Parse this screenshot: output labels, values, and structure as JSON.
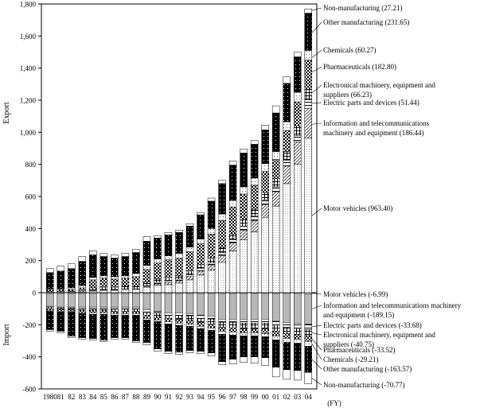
{
  "chart_data": {
    "type": "bar",
    "stacked": true,
    "ylabel_top": "Export",
    "ylabel_bottom": "Import",
    "xlabel": "(FY)",
    "ylim": [
      -600,
      1800
    ],
    "yticks": [
      -600,
      -400,
      -200,
      0,
      200,
      400,
      600,
      800,
      1000,
      1200,
      1400,
      1600,
      1800
    ],
    "ytick_labels": [
      "-600",
      "-400",
      "-200",
      "0",
      "200",
      "400",
      "600",
      "800",
      "1,000",
      "1,200",
      "1,400",
      "1,600",
      "1,800"
    ],
    "categories": [
      "1980",
      "81",
      "82",
      "83",
      "84",
      "85",
      "86",
      "87",
      "88",
      "89",
      "90",
      "91",
      "92",
      "93",
      "94",
      "95",
      "96",
      "97",
      "98",
      "99",
      "00",
      "01",
      "02",
      "03",
      "04"
    ],
    "export_series": [
      {
        "name": "Motor vehicles",
        "pattern": "motor",
        "values": [
          0,
          0,
          0,
          0,
          10,
          15,
          15,
          20,
          20,
          35,
          45,
          50,
          60,
          80,
          110,
          140,
          190,
          260,
          330,
          380,
          470,
          540,
          680,
          800,
          963.4
        ]
      },
      {
        "name": "Information and telecommunications machinery and equipment",
        "pattern": "info",
        "values": [
          0,
          0,
          0,
          0,
          0,
          0,
          0,
          0,
          0,
          5,
          10,
          15,
          15,
          20,
          25,
          30,
          40,
          50,
          60,
          70,
          80,
          90,
          110,
          140,
          186.44
        ]
      },
      {
        "name": "Electric parts and devices",
        "pattern": "parts",
        "values": [
          5,
          5,
          5,
          5,
          5,
          5,
          5,
          5,
          5,
          5,
          10,
          10,
          10,
          10,
          15,
          15,
          20,
          20,
          25,
          30,
          30,
          30,
          35,
          40,
          51.44
        ]
      },
      {
        "name": "Electronical machinery, equipment and suppliers",
        "pattern": "elec",
        "values": [
          5,
          5,
          5,
          10,
          15,
          15,
          15,
          15,
          15,
          20,
          20,
          20,
          20,
          25,
          25,
          30,
          30,
          35,
          40,
          40,
          45,
          50,
          55,
          60,
          66.23
        ]
      },
      {
        "name": "Pharmaceuticals",
        "pattern": "pharma",
        "values": [
          10,
          10,
          10,
          15,
          50,
          55,
          50,
          50,
          60,
          80,
          100,
          110,
          110,
          120,
          130,
          150,
          170,
          170,
          160,
          150,
          130,
          120,
          130,
          150,
          182.8
        ]
      },
      {
        "name": "Chemicals",
        "pattern": "chem",
        "values": [
          5,
          5,
          10,
          15,
          15,
          15,
          15,
          15,
          20,
          25,
          25,
          25,
          30,
          30,
          30,
          35,
          40,
          40,
          45,
          45,
          50,
          50,
          55,
          60,
          60.27
        ]
      },
      {
        "name": "Other manufacturing",
        "pattern": "other",
        "values": [
          100,
          110,
          120,
          150,
          140,
          120,
          115,
          120,
          130,
          150,
          130,
          130,
          130,
          130,
          150,
          170,
          190,
          220,
          210,
          210,
          210,
          240,
          240,
          220,
          231.65
        ]
      },
      {
        "name": "Non-manufacturing",
        "pattern": "nonmfg",
        "values": [
          25,
          30,
          30,
          30,
          25,
          20,
          20,
          20,
          20,
          30,
          15,
          15,
          15,
          15,
          15,
          20,
          20,
          25,
          25,
          25,
          30,
          45,
          40,
          30,
          27.21
        ]
      }
    ],
    "import_series": [
      {
        "name": "Motor vehicles",
        "pattern": "motor",
        "values": [
          -5,
          -5,
          -5,
          -5,
          -5,
          -5,
          -5,
          -5,
          -5,
          -5,
          -5,
          -5,
          -5,
          -5,
          -5,
          -5,
          -5,
          -5,
          -5,
          -5,
          -5,
          -5,
          -5,
          -5,
          -6.99
        ]
      },
      {
        "name": "Information and telecommunications machinery and equipment",
        "pattern": "info",
        "values": [
          -80,
          -85,
          -85,
          -85,
          -85,
          -85,
          -85,
          -85,
          -85,
          -100,
          -110,
          -120,
          -120,
          -125,
          -135,
          -140,
          -160,
          -160,
          -160,
          -160,
          -160,
          -170,
          -180,
          -185,
          -189.15
        ]
      },
      {
        "name": "Electric parts and devices",
        "pattern": "parts",
        "values": [
          -5,
          -5,
          -5,
          -10,
          -10,
          -10,
          -10,
          -10,
          -10,
          -15,
          -15,
          -15,
          -15,
          -15,
          -20,
          -20,
          -20,
          -20,
          -25,
          -25,
          -25,
          -25,
          -30,
          -30,
          -33.68
        ]
      },
      {
        "name": "Electronical machinery, equipment and suppliers",
        "pattern": "elec",
        "values": [
          -10,
          -10,
          -10,
          -10,
          -10,
          -10,
          -15,
          -15,
          -15,
          -20,
          -20,
          -20,
          -25,
          -25,
          -25,
          -30,
          -30,
          -35,
          -35,
          -35,
          -35,
          -40,
          -40,
          -40,
          -40.75
        ]
      },
      {
        "name": "Pharmaceuticals",
        "pattern": "pharma",
        "values": [
          -10,
          -10,
          -10,
          -15,
          -15,
          -15,
          -15,
          -15,
          -15,
          -20,
          -20,
          -20,
          -25,
          -25,
          -25,
          -25,
          -25,
          -25,
          -25,
          -25,
          -30,
          -30,
          -30,
          -30,
          -33.52
        ]
      },
      {
        "name": "Chemicals",
        "pattern": "chem",
        "values": [
          -5,
          -5,
          -5,
          -5,
          -10,
          -10,
          -10,
          -10,
          -10,
          -10,
          -10,
          -15,
          -15,
          -15,
          -15,
          -15,
          -20,
          -20,
          -20,
          -20,
          -20,
          -25,
          -25,
          -25,
          -29.21
        ]
      },
      {
        "name": "Other manufacturing",
        "pattern": "other",
        "values": [
          -115,
          -120,
          -150,
          -150,
          -150,
          -160,
          -140,
          -140,
          -160,
          -140,
          -170,
          -170,
          -165,
          -150,
          -140,
          -140,
          -170,
          -150,
          -130,
          -130,
          -130,
          -170,
          -170,
          -170,
          -163.57
        ]
      },
      {
        "name": "Non-manufacturing",
        "pattern": "nonmfg",
        "values": [
          -10,
          -10,
          -10,
          -10,
          -10,
          -10,
          -10,
          -10,
          -10,
          -15,
          -15,
          -15,
          -15,
          -15,
          -15,
          -20,
          -20,
          -30,
          -35,
          -40,
          -50,
          -60,
          -60,
          -60,
          -70.77
        ]
      }
    ],
    "legend_export": [
      {
        "label": "Non-manufacturing (27.21)",
        "anchor_value": 1760
      },
      {
        "label": "Other manufacturing (231.65)",
        "anchor_value": 1620
      },
      {
        "label": "Chemicals (60.27)",
        "anchor_value": 1465
      },
      {
        "label": "Pharmaceuticals (182.80)",
        "anchor_value": 1375
      },
      {
        "label": "Electronical machinery, equipment and",
        "label2": "suppliers (66.23)",
        "anchor_value": 1245
      },
      {
        "label": "Electric parts and devices (51.44)",
        "anchor_value": 1180
      },
      {
        "label": "Information and telecommunications",
        "label2": "machinery and equipment (186.44)",
        "anchor_value": 1050
      },
      {
        "label": "Motor vehicles (963.40)",
        "anchor_value": 480
      }
    ],
    "legend_import": [
      {
        "label": "Motor vehicles (-6.99)"
      },
      {
        "label": "Information and telecommunications machinery",
        "label2": "and equipment (-189.15)"
      },
      {
        "label": "Electric parts and devices (-33.68)"
      },
      {
        "label": "Electronical machinery, equipment and",
        "label2": "suppliers (-40.75)"
      },
      {
        "label": "Pharmaceuticals (-33.52)"
      },
      {
        "label": "Chemicals (-29.21)"
      },
      {
        "label": "Other manufacturing (-163.57)"
      },
      {
        "label": "Non-manufacturing (-70.77)"
      }
    ]
  }
}
